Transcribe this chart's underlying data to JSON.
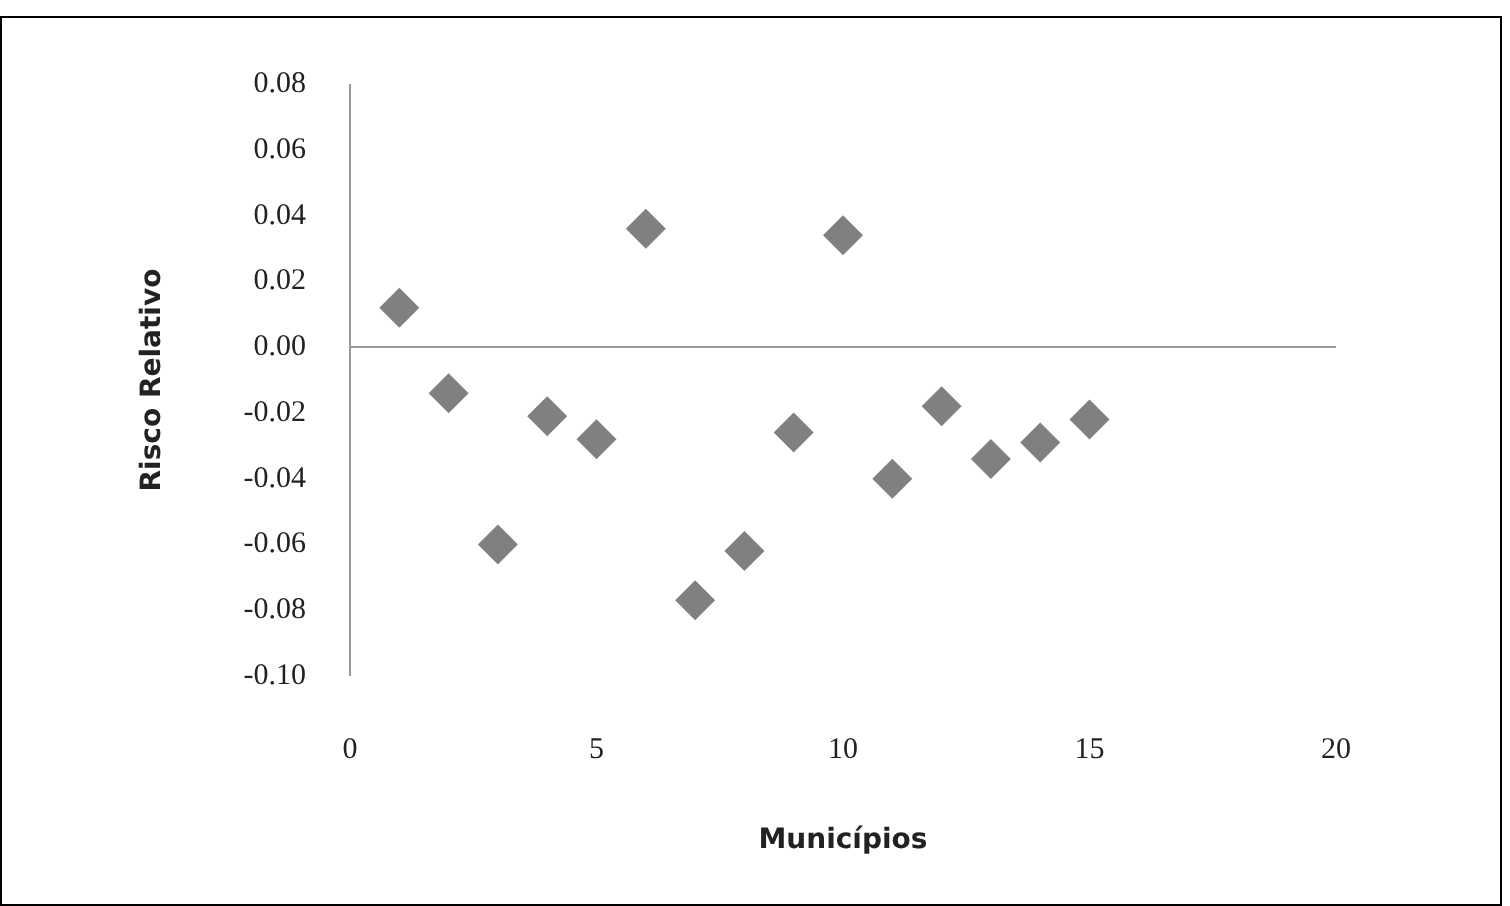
{
  "chart_data": {
    "type": "scatter",
    "xlabel": "Municípios",
    "ylabel": "Risco Relativo",
    "marker": "diamond",
    "x": [
      1,
      2,
      3,
      4,
      5,
      6,
      7,
      8,
      9,
      10,
      11,
      12,
      13,
      14,
      15
    ],
    "series": [
      {
        "color": "#808080",
        "values": [
          0.012,
          -0.014,
          -0.06,
          -0.021,
          -0.028,
          0.036,
          -0.077,
          -0.062,
          -0.026,
          0.034,
          -0.04,
          -0.018,
          -0.034,
          -0.029,
          -0.022
        ]
      }
    ],
    "xlim": [
      0,
      20
    ],
    "xticks": [
      0,
      5,
      10,
      15,
      20
    ],
    "ylim": [
      -0.1,
      0.08
    ],
    "yticks": [
      {
        "value": -0.1,
        "label": "-0.10"
      },
      {
        "value": -0.08,
        "label": "-0.08"
      },
      {
        "value": -0.06,
        "label": "-0.06"
      },
      {
        "value": -0.04,
        "label": "-0.04"
      },
      {
        "value": -0.02,
        "label": "-0.02"
      },
      {
        "value": 0,
        "label": "0.00"
      },
      {
        "value": 0.02,
        "label": "0.02"
      },
      {
        "value": 0.04,
        "label": "0.04"
      },
      {
        "value": 0.06,
        "label": "0.06"
      },
      {
        "value": 0.08,
        "label": "0.08"
      }
    ]
  }
}
